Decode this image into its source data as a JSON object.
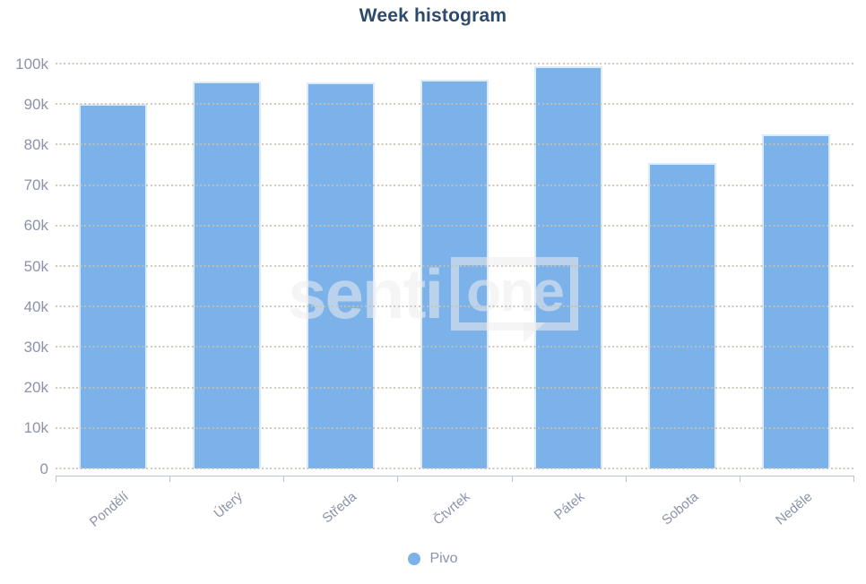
{
  "title": "Week histogram",
  "legend": {
    "label": "Pivo"
  },
  "watermark": {
    "text_left": "senti",
    "text_boxed": "one"
  },
  "colors": {
    "bar": "#7cb2ea",
    "bar_edge": "#dcebfa",
    "title": "#2e4a6b",
    "tick_label": "#8d93a8",
    "gridline_dot": "#c6c0b3",
    "axis_line": "#b9c2d6"
  },
  "chart_data": {
    "type": "bar",
    "title": "Week histogram",
    "categories": [
      "Pondělí",
      "Úterý",
      "Středa",
      "Čtvrtek",
      "Pátek",
      "Sobota",
      "Neděle"
    ],
    "series": [
      {
        "name": "Pivo",
        "values": [
          90000,
          95500,
          95400,
          96100,
          99300,
          75400,
          82500
        ]
      }
    ],
    "xlabel": "",
    "ylabel": "",
    "ylim": [
      0,
      100000
    ],
    "ytick_step": 10000,
    "ytick_labels": [
      "0",
      "10k",
      "20k",
      "30k",
      "40k",
      "50k",
      "60k",
      "70k",
      "80k",
      "90k",
      "100k"
    ],
    "grid": "dotted-horizontal",
    "legend_position": "bottom"
  }
}
